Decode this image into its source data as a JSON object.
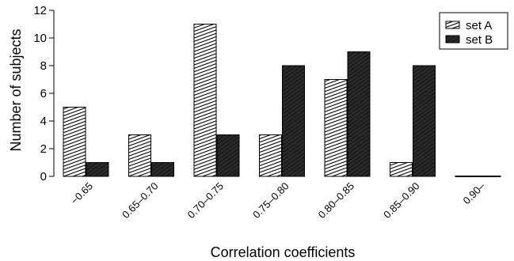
{
  "chart_data": {
    "type": "bar",
    "categories": [
      "−0.65",
      "0.65–0.70",
      "0.70–0.75",
      "0.75–0.80",
      "0.80–0.85",
      "0.85–0.90",
      "0.90–"
    ],
    "series": [
      {
        "name": "set A",
        "values": [
          5,
          3,
          11,
          3,
          7,
          1,
          0
        ]
      },
      {
        "name": "set B",
        "values": [
          1,
          1,
          3,
          8,
          9,
          8,
          0
        ]
      }
    ],
    "title": "",
    "xlabel": "Correlation coefficients",
    "ylabel": "Number of subjects",
    "ylim": [
      0,
      12
    ],
    "yticks": [
      0,
      2,
      4,
      6,
      8,
      10,
      12
    ],
    "legend_position": "top-right",
    "grid": false,
    "colors": {
      "setA_fill": "#ffffff",
      "setA_hatch": "#000000",
      "setB_fill": "#2a2a2a",
      "axis": "#000000"
    }
  }
}
